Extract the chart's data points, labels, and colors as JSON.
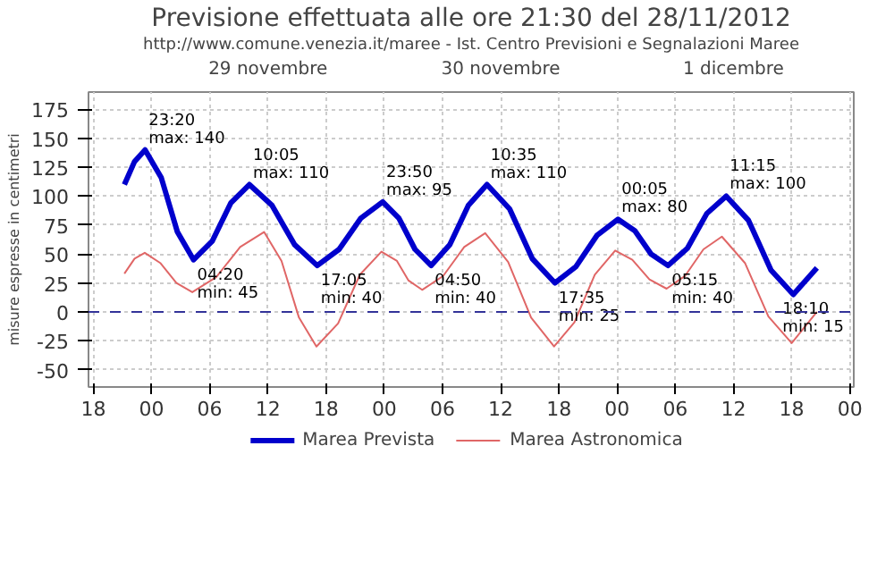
{
  "chart_data": {
    "type": "line",
    "title": "Previsione effettuata alle ore 21:30 del 28/11/2012",
    "subtitle": "http://www.comune.venezia.it/maree - Ist. Centro Previsioni e Segnalazioni Maree",
    "ylabel": "misure espresse in centimetri",
    "xlim": [
      "2012-11-28T17:30",
      "2012-12-02T00:24"
    ],
    "xticks": [
      {
        "value": "2012-11-28T18:00",
        "label": "18"
      },
      {
        "value": "2012-11-29T00:00",
        "label": "00"
      },
      {
        "value": "2012-11-29T06:00",
        "label": "06"
      },
      {
        "value": "2012-11-29T12:00",
        "label": "12"
      },
      {
        "value": "2012-11-29T18:00",
        "label": "18"
      },
      {
        "value": "2012-11-30T00:00",
        "label": "00"
      },
      {
        "value": "2012-11-30T06:00",
        "label": "06"
      },
      {
        "value": "2012-11-30T12:00",
        "label": "12"
      },
      {
        "value": "2012-11-30T18:00",
        "label": "18"
      },
      {
        "value": "2012-12-01T00:00",
        "label": "00"
      },
      {
        "value": "2012-12-01T06:00",
        "label": "06"
      },
      {
        "value": "2012-12-01T12:00",
        "label": "12"
      },
      {
        "value": "2012-12-01T18:00",
        "label": "18"
      },
      {
        "value": "2012-12-02T00:00",
        "label": "00"
      }
    ],
    "x2lim": [
      "2012-11-28T17:30",
      "2012-12-02T00:24"
    ],
    "x2ticks": [
      {
        "value": "2012-11-29T12:00",
        "label": "29 novembre"
      },
      {
        "value": "2012-11-30T12:00",
        "label": "30 novembre"
      },
      {
        "value": "2012-12-01T12:00",
        "label": "1 dicembre"
      }
    ],
    "ylim": [
      -65,
      190
    ],
    "yticks": [
      -50,
      -25,
      0,
      25,
      50,
      75,
      100,
      125,
      150,
      175
    ],
    "grid": true,
    "legend": "bottom",
    "line_style": "solid",
    "series": [
      {
        "name": "Marea Prevista",
        "color": "#0000cc",
        "x": [
          "2012-11-28T21:12",
          "2012-11-28T22:15",
          "2012-11-28T23:20",
          "2012-11-29T01:00",
          "2012-11-29T02:40",
          "2012-11-29T04:20",
          "2012-11-29T06:15",
          "2012-11-29T08:10",
          "2012-11-29T10:05",
          "2012-11-29T12:25",
          "2012-11-29T14:45",
          "2012-11-29T17:05",
          "2012-11-29T19:20",
          "2012-11-29T21:35",
          "2012-11-29T23:50",
          "2012-11-30T01:30",
          "2012-11-30T03:10",
          "2012-11-30T04:50",
          "2012-11-30T06:45",
          "2012-11-30T08:40",
          "2012-11-30T10:35",
          "2012-11-30T12:55",
          "2012-11-30T15:15",
          "2012-11-30T17:35",
          "2012-11-30T19:45",
          "2012-11-30T21:55",
          "2012-12-01T00:05",
          "2012-12-01T01:50",
          "2012-12-01T03:30",
          "2012-12-01T05:15",
          "2012-12-01T07:15",
          "2012-12-01T09:15",
          "2012-12-01T11:15",
          "2012-12-01T13:33",
          "2012-12-01T15:52",
          "2012-12-01T18:10",
          "2012-12-01T20:36"
        ],
        "values": [
          110,
          130,
          140,
          116,
          69,
          45,
          61,
          94,
          110,
          92,
          58,
          40,
          54,
          81,
          95,
          81,
          54,
          40,
          58,
          92,
          110,
          89,
          46,
          25,
          39,
          66,
          80,
          70,
          50,
          40,
          55,
          85,
          100,
          79,
          36,
          15,
          38
        ]
      },
      {
        "name": "Marea Astronomica",
        "color": "#e06666",
        "x": [
          "2012-11-28T21:12",
          "2012-11-28T22:15",
          "2012-11-28T23:18",
          "2012-11-29T00:56",
          "2012-11-29T02:34",
          "2012-11-29T04:12",
          "2012-11-29T06:40",
          "2012-11-29T09:08",
          "2012-11-29T11:36",
          "2012-11-29T13:24",
          "2012-11-29T15:12",
          "2012-11-29T17:00",
          "2012-11-29T19:14",
          "2012-11-29T21:28",
          "2012-11-29T23:42",
          "2012-11-30T01:18",
          "2012-11-30T02:30",
          "2012-11-30T03:54",
          "2012-11-30T06:04",
          "2012-11-30T08:14",
          "2012-11-30T10:24",
          "2012-11-30T12:46",
          "2012-11-30T15:08",
          "2012-11-30T17:30",
          "2012-11-30T19:36",
          "2012-11-30T21:42",
          "2012-11-30T23:48",
          "2012-12-01T01:34",
          "2012-12-01T03:20",
          "2012-12-01T05:06",
          "2012-12-01T07:00",
          "2012-12-01T08:54",
          "2012-12-01T10:48",
          "2012-12-01T13:12",
          "2012-12-01T15:36",
          "2012-12-01T18:00",
          "2012-12-01T20:36"
        ],
        "values": [
          33,
          46,
          51,
          42,
          25,
          17,
          30,
          56,
          69,
          44,
          -5,
          -30,
          -10,
          32,
          52,
          44,
          27,
          19,
          31,
          56,
          68,
          43,
          -5,
          -30,
          -9,
          32,
          53,
          45,
          28,
          20,
          31,
          54,
          65,
          42,
          -4,
          -27,
          0
        ]
      }
    ],
    "ref_lines": [
      {
        "axis": "y",
        "value": 0,
        "color": "#333399",
        "line_style": "dashed"
      }
    ],
    "annotations": [
      {
        "text": "23:20\nmax: 140",
        "x": "2012-11-28T23:20",
        "y": 140
      },
      {
        "text": "04:20\nmin: 45",
        "x": "2012-11-29T04:20",
        "y": 45
      },
      {
        "text": "10:05\nmax: 110",
        "x": "2012-11-29T10:05",
        "y": 110
      },
      {
        "text": "17:05\nmin: 40",
        "x": "2012-11-29T17:05",
        "y": 40
      },
      {
        "text": "23:50\nmax: 95",
        "x": "2012-11-29T23:50",
        "y": 95
      },
      {
        "text": "04:50\nmin: 40",
        "x": "2012-11-30T04:50",
        "y": 40
      },
      {
        "text": "10:35\nmax: 110",
        "x": "2012-11-30T10:35",
        "y": 110
      },
      {
        "text": "17:35\nmin: 25",
        "x": "2012-11-30T17:35",
        "y": 25
      },
      {
        "text": "00:05\nmax: 80",
        "x": "2012-12-01T00:05",
        "y": 80
      },
      {
        "text": "05:15\nmin: 40",
        "x": "2012-12-01T05:15",
        "y": 40
      },
      {
        "text": "11:15\nmax: 100",
        "x": "2012-12-01T11:15",
        "y": 100
      },
      {
        "text": "18:10\nmin: 15",
        "x": "2012-12-01T18:10",
        "y": 15
      }
    ]
  }
}
